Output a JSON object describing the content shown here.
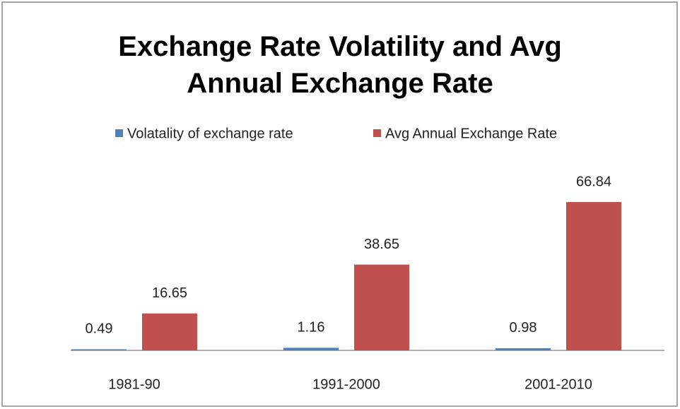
{
  "chart_data": {
    "type": "bar",
    "title": "Exchange Rate Volatility and Avg Annual Exchange Rate",
    "categories": [
      "1981-90",
      "1991-2000",
      "2001-2010"
    ],
    "series": [
      {
        "name": "Volatality of exchange rate",
        "color": "#4f81bd",
        "values": [
          0.49,
          1.16,
          0.98
        ]
      },
      {
        "name": "Avg Annual Exchange Rate",
        "color": "#c0504d",
        "values": [
          16.65,
          38.65,
          66.84
        ]
      }
    ],
    "legend": "top"
  }
}
